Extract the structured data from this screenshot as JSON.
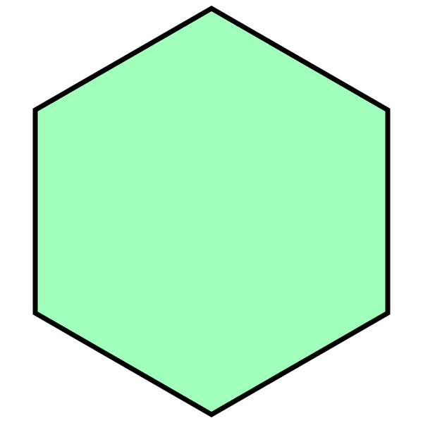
{
  "shape": {
    "type": "hexagon",
    "orientation": "pointy-top",
    "fill_color": "#a0ffbb",
    "stroke_color": "#000000"
  }
}
